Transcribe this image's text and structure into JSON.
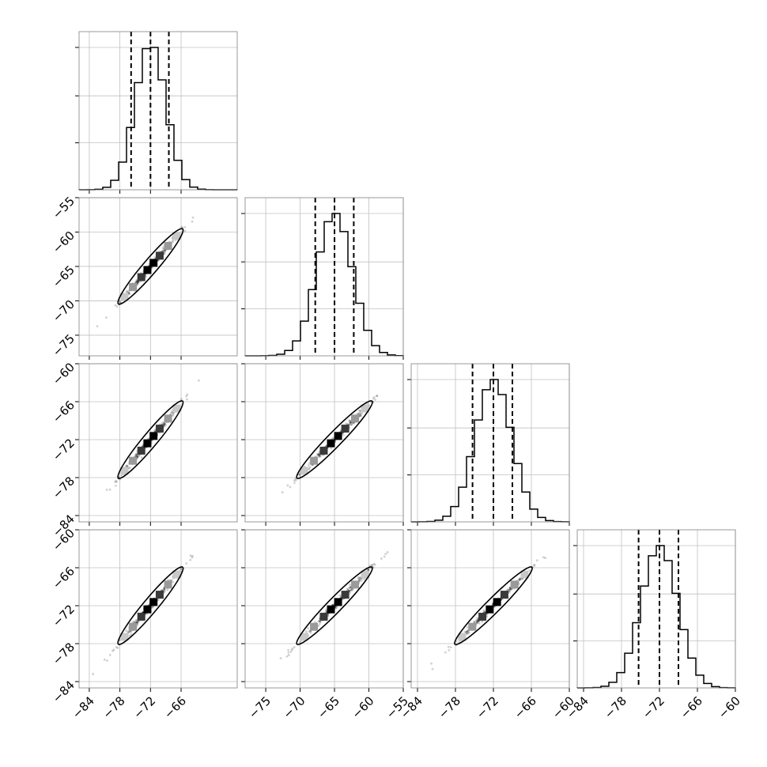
{
  "chart_data": {
    "type": "corner",
    "n_params": 4,
    "grid": true,
    "parameters": [
      {
        "range": [
          -86,
          -55
        ],
        "ticks": [
          -84,
          -78,
          -72,
          -66
        ],
        "tick_labels": [
          "−84",
          "−78",
          "−72",
          "−66"
        ],
        "mean": -72,
        "sigma": 3.0,
        "quantiles": [
          -75.8,
          -72.0,
          -68.4
        ]
      },
      {
        "range": [
          -78,
          -55
        ],
        "ticks": [
          -75,
          -70,
          -65,
          -60,
          -55
        ],
        "tick_labels": [
          "−75",
          "−70",
          "−65",
          "−60",
          "−55"
        ],
        "mean": -65,
        "sigma": 2.6,
        "quantiles": [
          -67.8,
          -65.0,
          -62.2
        ]
      },
      {
        "range": [
          -85,
          -60
        ],
        "ticks": [
          -84,
          -78,
          -72,
          -66,
          -60
        ],
        "tick_labels": [
          "−84",
          "−78",
          "−72",
          "−66",
          "−60"
        ],
        "mean": -72,
        "sigma": 2.9,
        "quantiles": [
          -75.3,
          -72.0,
          -69.0
        ]
      },
      {
        "range": [
          -85,
          -60
        ],
        "ticks": [
          -84,
          -78,
          -72,
          -66,
          -60
        ],
        "tick_labels": [
          "−84",
          "−78",
          "−72",
          "−66",
          "−60"
        ],
        "mean": -72,
        "sigma": 2.9,
        "quantiles": [
          -75.3,
          -72.0,
          -69.0
        ]
      }
    ],
    "hist_bins": 20,
    "correlation": 0.995
  }
}
